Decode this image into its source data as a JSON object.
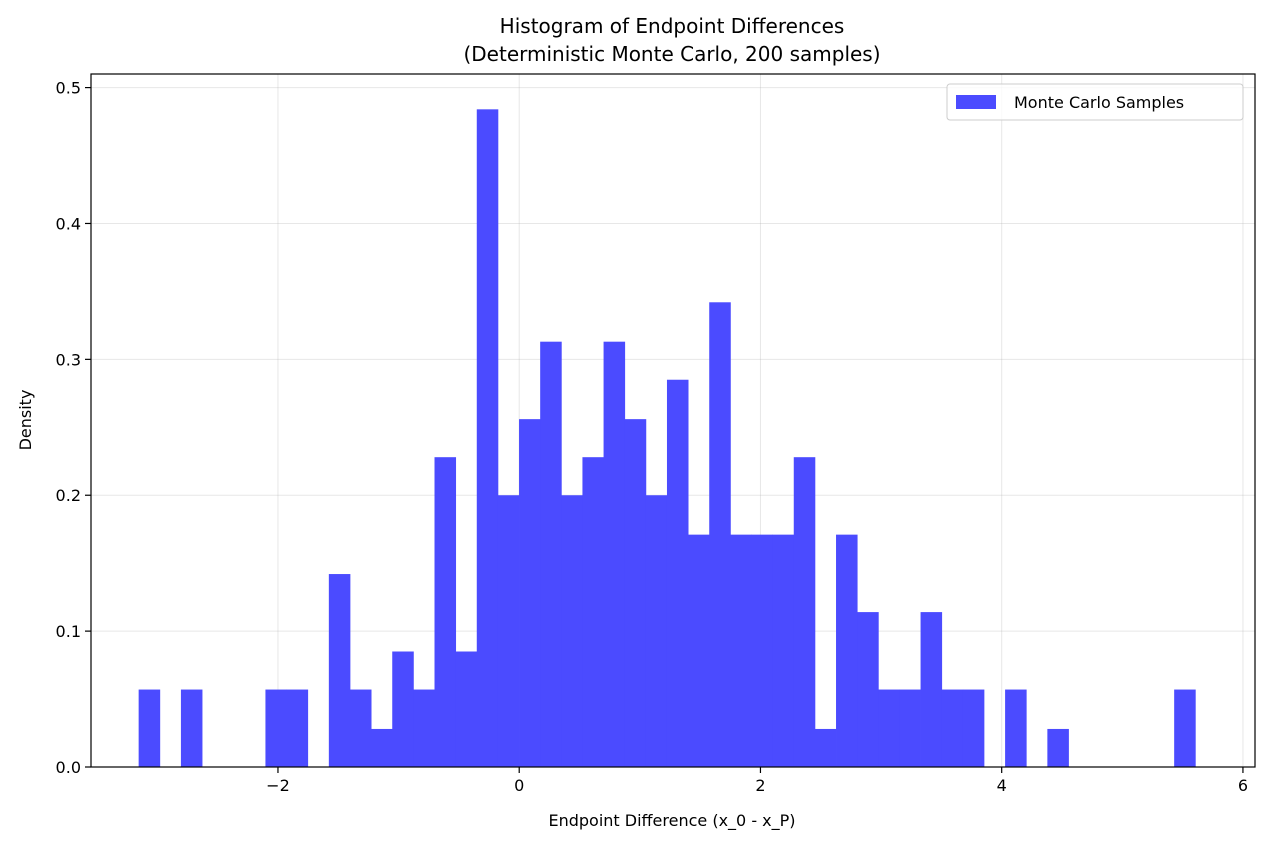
{
  "chart_data": {
    "type": "bar",
    "title_line1": "Histogram of Endpoint Differences",
    "title_line2": "(Deterministic Monte Carlo, 200 samples)",
    "xlabel": "Endpoint Difference (x_0 - x_P)",
    "ylabel": "Density",
    "xlim": [
      -3.55,
      6.1
    ],
    "ylim": [
      0,
      0.51
    ],
    "x_ticks": [
      -2,
      0,
      2,
      4,
      6
    ],
    "x_tick_labels": [
      "−2",
      "0",
      "2",
      "4",
      "6"
    ],
    "y_ticks": [
      0.0,
      0.1,
      0.2,
      0.3,
      0.4,
      0.5
    ],
    "y_tick_labels": [
      "0.0",
      "0.1",
      "0.2",
      "0.3",
      "0.4",
      "0.5"
    ],
    "grid": true,
    "legend_position": "top-right",
    "series": [
      {
        "name": "Monte Carlo Samples",
        "color": "#4b4bff",
        "bin_start": -3.155,
        "bin_width": 0.1752,
        "values": [
          0.057,
          0,
          0.057,
          0,
          0,
          0,
          0.057,
          0.057,
          0,
          0.142,
          0.057,
          0.028,
          0.085,
          0.057,
          0.228,
          0.085,
          0.484,
          0.2,
          0.256,
          0.313,
          0.2,
          0.228,
          0.313,
          0.256,
          0.2,
          0.285,
          0.171,
          0.342,
          0.171,
          0.171,
          0.171,
          0.228,
          0.028,
          0.171,
          0.114,
          0.057,
          0.057,
          0.114,
          0.057,
          0.057,
          0,
          0.057,
          0,
          0.028,
          0,
          0,
          0,
          0,
          0,
          0.057
        ]
      }
    ]
  }
}
